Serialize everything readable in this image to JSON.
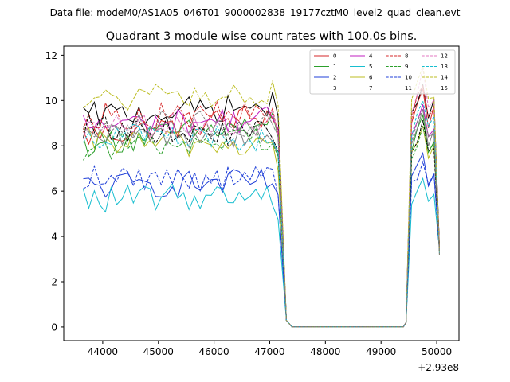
{
  "chart_data": {
    "type": "line",
    "suptitle": "Data file: modeM0/AS1A05_046T01_9000002838_19177cztM0_level2_quad_clean.evt",
    "title": "Quadrant 3 module wise count rates with 100.0s bins.",
    "xlabel": "",
    "ylabel": "",
    "x_offset_label": "+2.93e8",
    "xlim": [
      43300,
      50400
    ],
    "ylim": [
      -0.6,
      12.4
    ],
    "x_ticks": [
      44000,
      45000,
      46000,
      47000,
      48000,
      49000,
      50000
    ],
    "x_tick_labels": [
      "44000",
      "45000",
      "46000",
      "47000",
      "48000",
      "49000",
      "50000"
    ],
    "y_ticks": [
      0,
      2,
      4,
      6,
      8,
      10,
      12
    ],
    "y_tick_labels": [
      "0",
      "2",
      "4",
      "6",
      "8",
      "10",
      "12"
    ],
    "legend_position": "top-right",
    "legend_columns": 4,
    "x_segments": {
      "active1": {
        "start": 43650,
        "step": 100,
        "count": 36
      },
      "gap": [
        47300,
        47400,
        47500,
        47600,
        47700,
        47800,
        47900,
        48000,
        48100,
        48200,
        48300,
        48400,
        48500,
        48600,
        48700,
        48800,
        48900,
        49000,
        49100,
        49200,
        49300,
        49400
      ],
      "active2": {
        "start": 49450,
        "step": 100,
        "count": 7
      }
    },
    "series": [
      {
        "name": "0",
        "color": "#d62728",
        "dashed": false,
        "level1": 8.4,
        "level2": 9.4,
        "high": 10.6,
        "low": 0.3
      },
      {
        "name": "1",
        "color": "#2ca02c",
        "dashed": false,
        "level1": 8.1,
        "level2": 9.0,
        "high": 9.3,
        "low": 0.3
      },
      {
        "name": "2",
        "color": "#1f3fd8",
        "dashed": false,
        "level1": 6.2,
        "level2": 6.4,
        "high": 7.5,
        "low": 0.3
      },
      {
        "name": "3",
        "color": "#000000",
        "dashed": false,
        "level1": 9.3,
        "level2": 9.8,
        "high": 11.0,
        "low": 0.3
      },
      {
        "name": "4",
        "color": "#c21fc2",
        "dashed": false,
        "level1": 8.9,
        "level2": 9.2,
        "high": 10.0,
        "low": 0.3
      },
      {
        "name": "5",
        "color": "#17becf",
        "dashed": false,
        "level1": 5.6,
        "level2": 5.9,
        "high": 6.6,
        "low": 0.3
      },
      {
        "name": "6",
        "color": "#bcbd22",
        "dashed": false,
        "level1": 8.2,
        "level2": 8.0,
        "high": 8.8,
        "low": 0.3
      },
      {
        "name": "7",
        "color": "#7f7f7f",
        "dashed": false,
        "level1": 8.3,
        "level2": 8.6,
        "high": 9.4,
        "low": 0.3
      },
      {
        "name": "8",
        "color": "#d62728",
        "dashed": true,
        "level1": 9.3,
        "level2": 9.4,
        "high": 10.9,
        "low": 0.3
      },
      {
        "name": "9",
        "color": "#2ca02c",
        "dashed": true,
        "level1": 7.9,
        "level2": 8.4,
        "high": 9.0,
        "low": 0.3
      },
      {
        "name": "10",
        "color": "#1f3fd8",
        "dashed": true,
        "level1": 6.6,
        "level2": 6.6,
        "high": 7.3,
        "low": 0.3
      },
      {
        "name": "11",
        "color": "#000000",
        "dashed": true,
        "level1": 8.8,
        "level2": 8.5,
        "high": 9.0,
        "low": 0.3
      },
      {
        "name": "12",
        "color": "#e377c2",
        "dashed": true,
        "level1": 8.7,
        "level2": 9.1,
        "high": 11.2,
        "low": 0.3
      },
      {
        "name": "13",
        "color": "#17becf",
        "dashed": true,
        "level1": 8.5,
        "level2": 8.3,
        "high": 10.2,
        "low": 0.3
      },
      {
        "name": "14",
        "color": "#bcbd22",
        "dashed": true,
        "level1": 10.0,
        "level2": 10.3,
        "high": 11.6,
        "low": 0.3
      },
      {
        "name": "15",
        "color": "#7f7f7f",
        "dashed": true,
        "level1": 9.0,
        "level2": 8.9,
        "high": 9.6,
        "low": 0.3
      }
    ]
  }
}
